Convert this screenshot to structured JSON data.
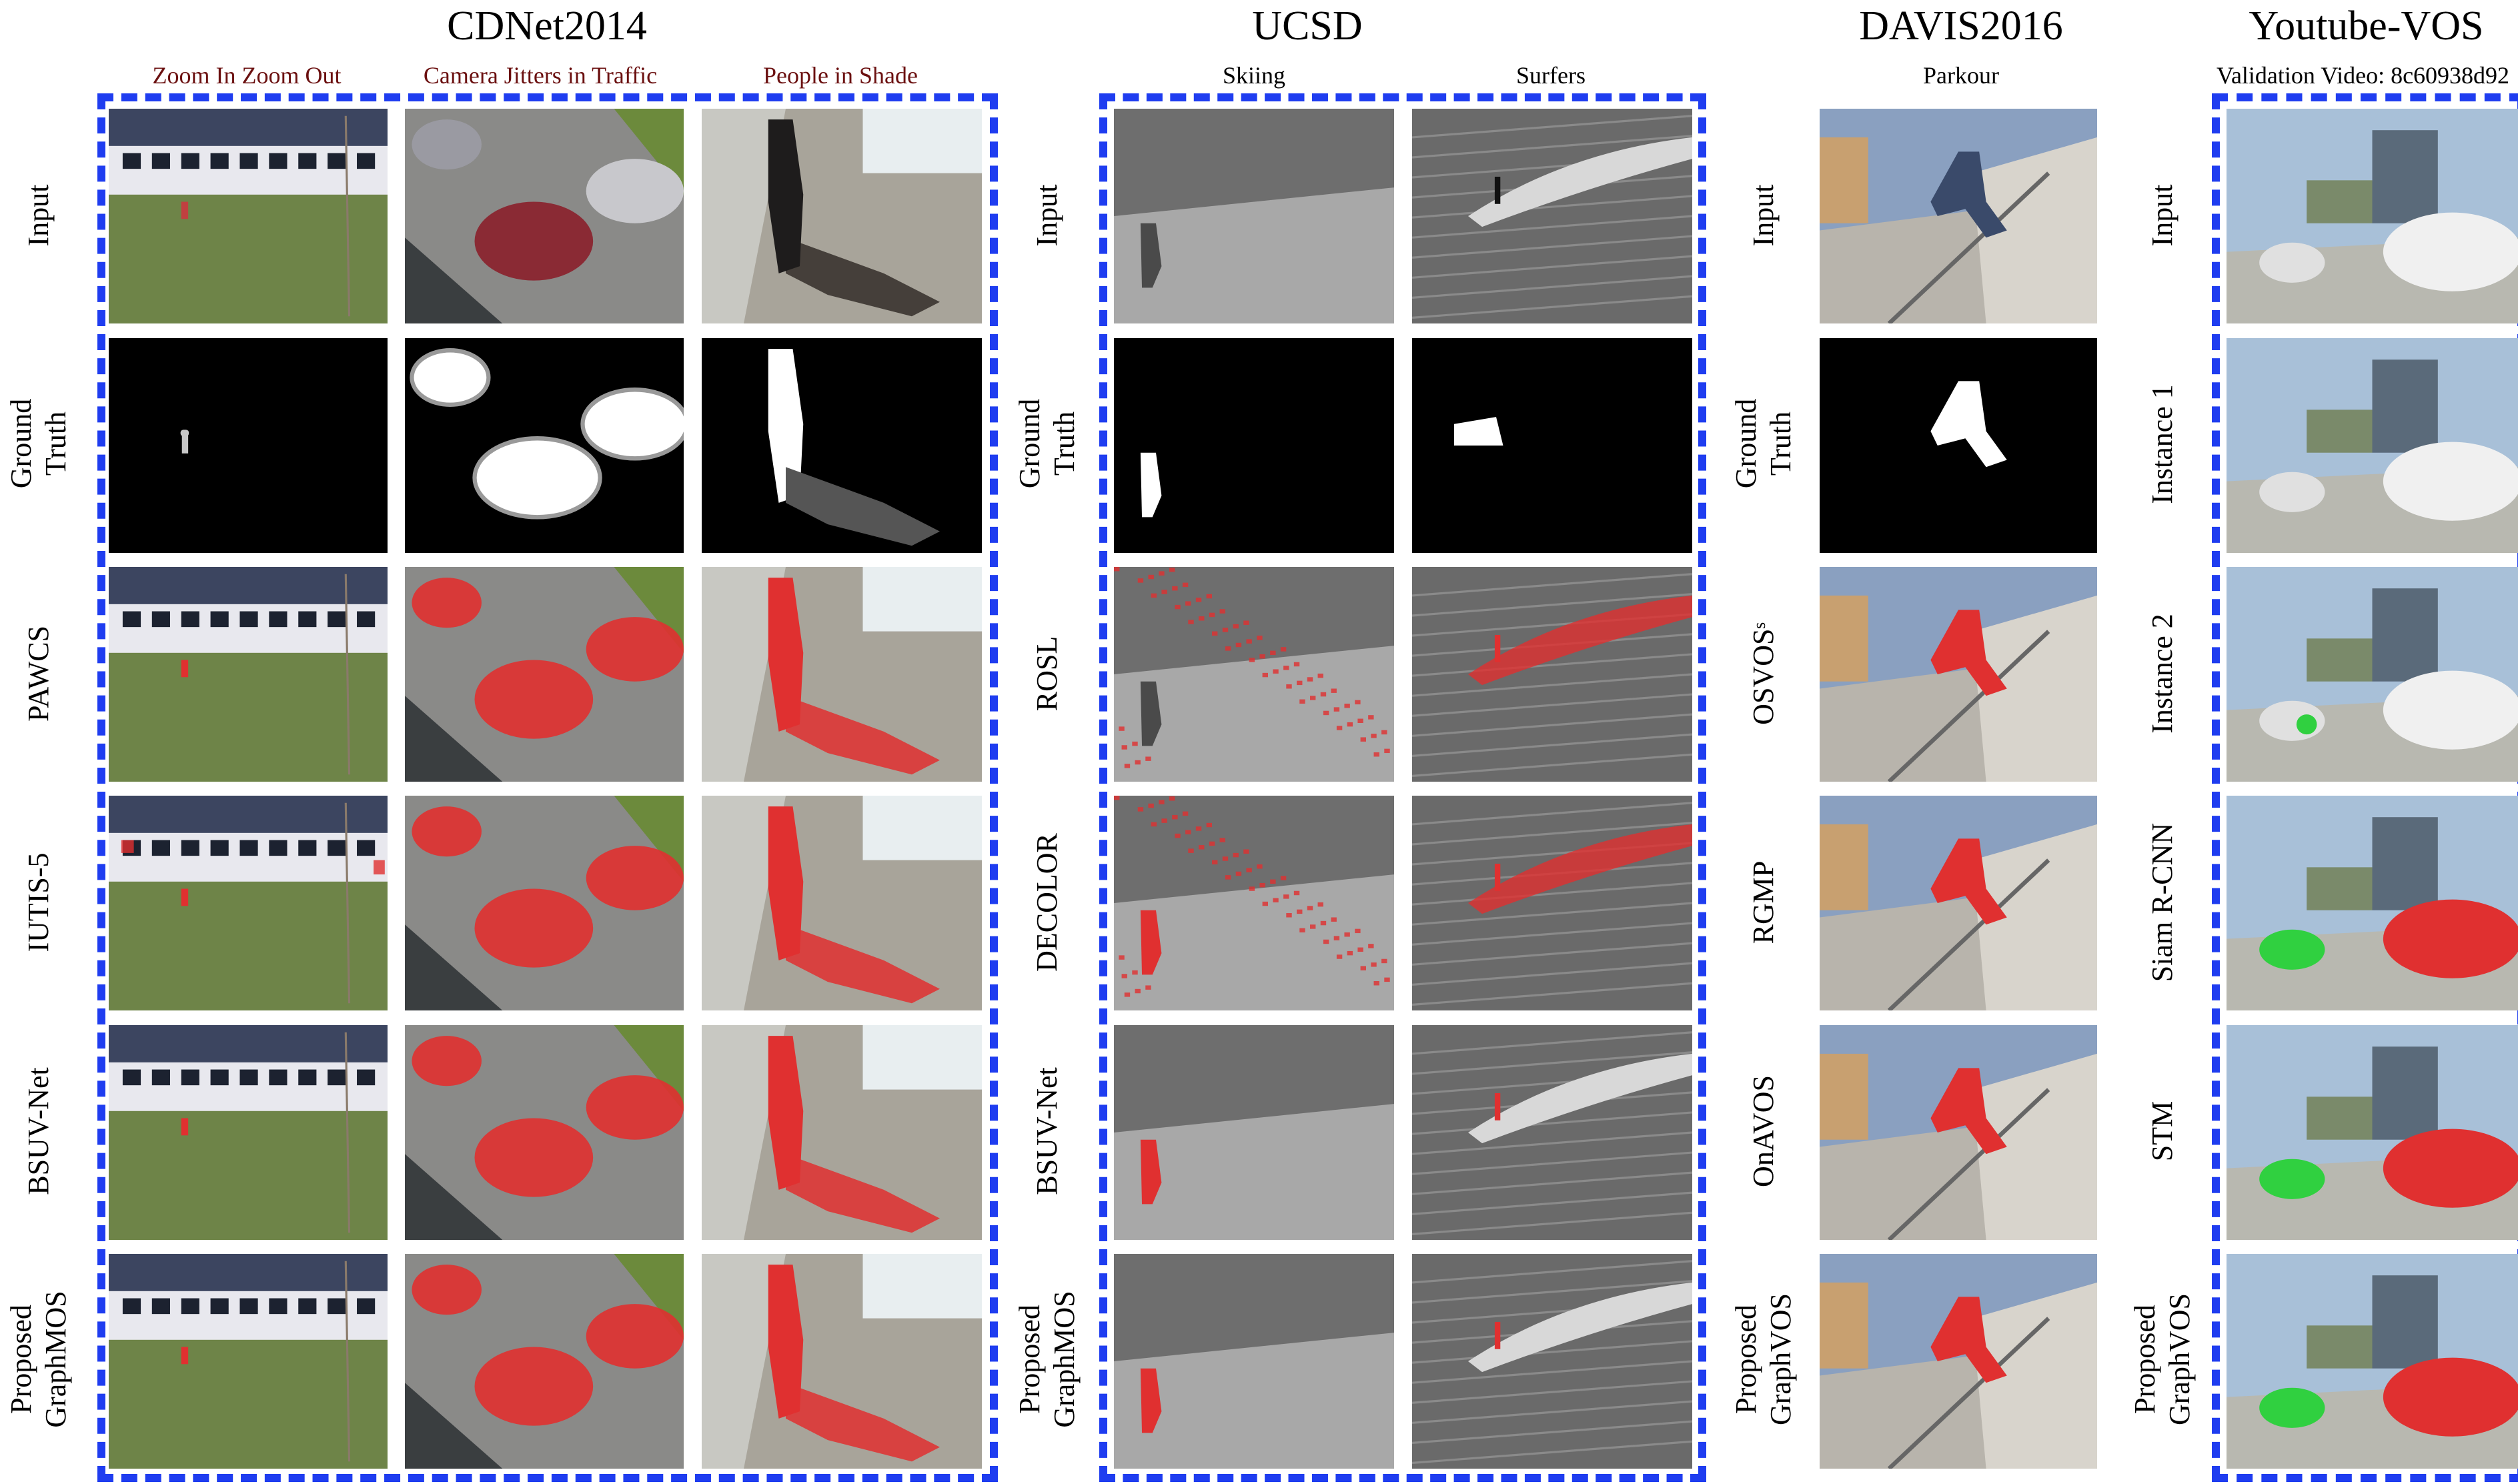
{
  "groups": {
    "cdnet": {
      "title": "CDNet2014",
      "columns": [
        "Zoom In Zoom Out",
        "Camera Jitters in Traffic",
        "People in Shade"
      ],
      "rows": [
        [
          "Input"
        ],
        [
          "Ground",
          "Truth"
        ],
        [
          "PAWCS"
        ],
        [
          "IUTIS-5"
        ],
        [
          "BSUV-Net"
        ],
        [
          "Proposed",
          "GraphMOS"
        ]
      ]
    },
    "ucsd": {
      "title": "UCSD",
      "columns": [
        "Skiing",
        "Surfers"
      ],
      "rows": [
        [
          "Input"
        ],
        [
          "Ground",
          "Truth"
        ],
        [
          "ROSL"
        ],
        [
          "DECOLOR"
        ],
        [
          "BSUV-Net"
        ],
        [
          "Proposed",
          "GraphMOS"
        ]
      ]
    },
    "davis": {
      "title": "DAVIS2016",
      "columns": [
        "Parkour"
      ],
      "rows": [
        [
          "Input"
        ],
        [
          "Ground",
          "Truth"
        ],
        [
          "OSVOSˢ"
        ],
        [
          "RGMP"
        ],
        [
          "OnAVOS"
        ],
        [
          "Proposed",
          "GraphVOS"
        ]
      ]
    },
    "ytvos": {
      "title": "Youtube-VOS",
      "columns": [
        "Validation Video: 8c60938d92"
      ],
      "rows": [
        [
          "Input"
        ],
        [
          "Instance 1"
        ],
        [
          "Instance 2"
        ],
        [
          "Siam R-CNN"
        ],
        [
          "STM"
        ],
        [
          "Proposed",
          "GraphVOS"
        ]
      ]
    }
  },
  "colors": {
    "box_dash": "#1f3df0",
    "mask_red": "#e03030",
    "mask_green": "#30d040",
    "column_header_red": "#6b1010"
  }
}
